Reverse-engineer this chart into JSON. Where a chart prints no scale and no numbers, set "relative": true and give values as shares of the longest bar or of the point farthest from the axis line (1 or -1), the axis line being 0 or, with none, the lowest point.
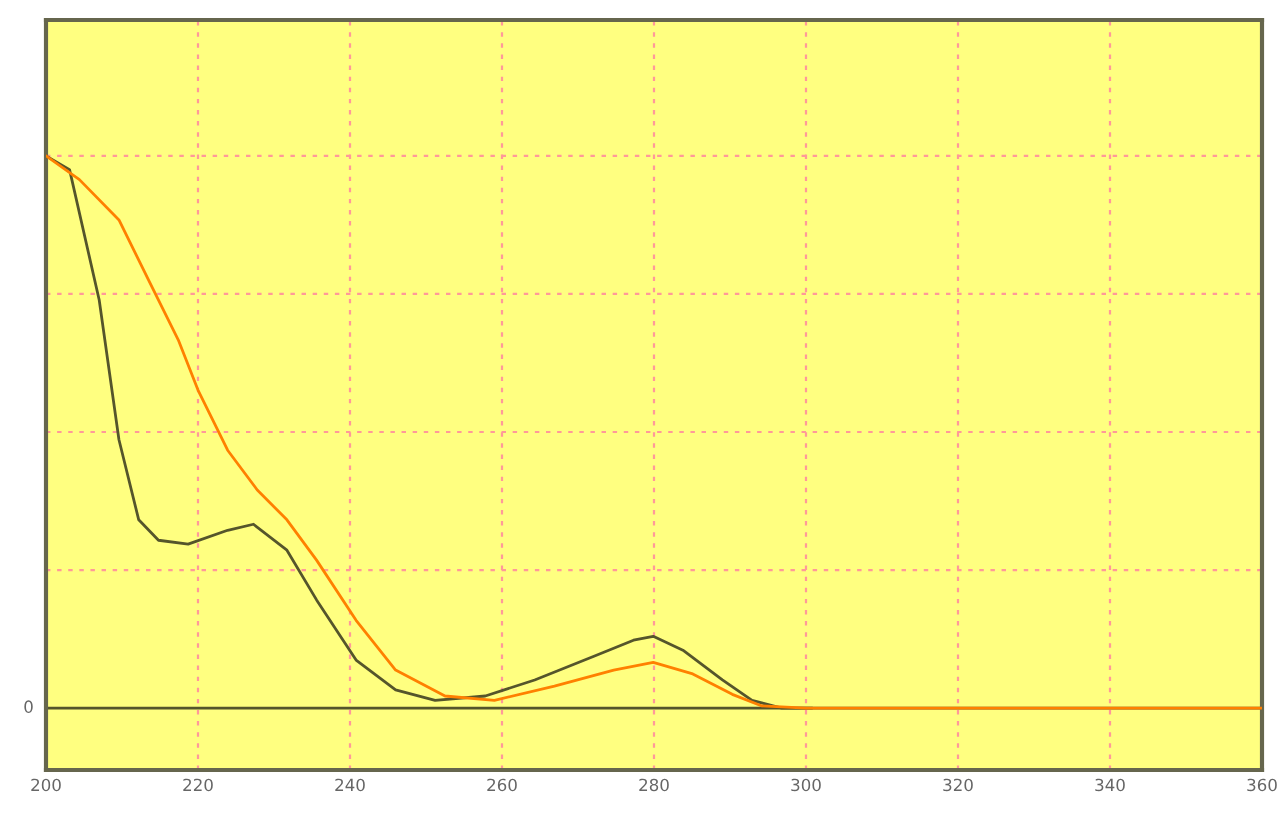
{
  "chart_data": {
    "type": "line",
    "relative": true,
    "xlim": [
      200,
      360
    ],
    "xticks": [
      200,
      220,
      240,
      260,
      280,
      300,
      320,
      340,
      360
    ],
    "grid": true,
    "line_style": "solid",
    "marker": "none",
    "series": [
      {
        "color": "#55552b",
        "x": [
          200,
          203.1,
          207.0,
          209.6,
          212.2,
          214.8,
          218.7,
          223.9,
          227.3,
          231.7,
          235.6,
          240.8,
          246.0,
          251.2,
          257.8,
          264.3,
          272.1,
          277.3,
          279.9,
          283.8,
          289.0,
          292.9,
          296.8,
          300.7
        ],
        "values": [
          1.0,
          0.975,
          0.739,
          0.486,
          0.341,
          0.304,
          0.297,
          0.322,
          0.333,
          0.286,
          0.196,
          0.087,
          0.033,
          0.014,
          0.022,
          0.051,
          0.094,
          0.123,
          0.13,
          0.105,
          0.051,
          0.014,
          0,
          0
        ]
      },
      {
        "color": "#ff8000",
        "x": [
          200,
          204.4,
          209.6,
          213.5,
          217.4,
          220.0,
          223.9,
          227.8,
          231.7,
          235.6,
          240.8,
          246.0,
          252.5,
          259.0,
          266.9,
          274.7,
          279.9,
          285.1,
          290.3,
          294.2,
          300,
          320,
          340,
          360
        ],
        "values": [
          1.0,
          0.957,
          0.884,
          0.775,
          0.667,
          0.576,
          0.467,
          0.395,
          0.341,
          0.268,
          0.159,
          0.069,
          0.022,
          0.014,
          0.04,
          0.069,
          0.083,
          0.062,
          0.025,
          0.004,
          0,
          0,
          0,
          0
        ]
      }
    ],
    "ref_lines": [
      {
        "axis": "y",
        "value": 0,
        "label": "0",
        "color": "#55552b"
      }
    ]
  }
}
